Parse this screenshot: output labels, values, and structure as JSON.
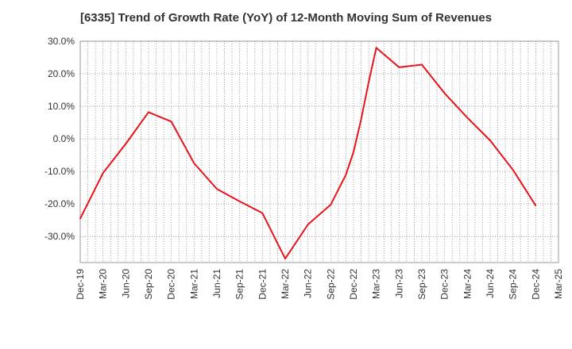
{
  "chart_data": {
    "type": "line",
    "title": "[6335]  Trend of Growth Rate (YoY) of 12-Month Moving Sum of Revenues",
    "xlabel": "",
    "ylabel": "",
    "ylim": [
      -38,
      30
    ],
    "y_ticks": [
      30,
      20,
      10,
      0,
      -10,
      -20,
      -30
    ],
    "y_tick_labels": [
      "30.0%",
      "20.0%",
      "10.0%",
      "0.0%",
      "-10.0%",
      "-20.0%",
      "-30.0%"
    ],
    "x_tick_labels": [
      "Dec-19",
      "Mar-20",
      "Jun-20",
      "Sep-20",
      "Dec-20",
      "Mar-21",
      "Jun-21",
      "Sep-21",
      "Dec-21",
      "Mar-22",
      "Jun-22",
      "Sep-22",
      "Dec-22",
      "Mar-23",
      "Jun-23",
      "Sep-23",
      "Dec-23",
      "Mar-24",
      "Jun-24",
      "Sep-24",
      "Dec-24",
      "Mar-25"
    ],
    "grid": true,
    "line_color": "#e8141b",
    "series": [
      {
        "x": [
          "Dec-19",
          "Mar-20",
          "Jun-20",
          "Sep-20",
          "Dec-20",
          "Mar-21",
          "Jun-21",
          "Sep-21",
          "Dec-21",
          "Mar-22",
          "Jun-22",
          "Sep-22",
          "Nov-22",
          "Dec-22",
          "Jan-23",
          "Feb-23",
          "Mar-23",
          "Jun-23",
          "Sep-23",
          "Dec-23",
          "Mar-24",
          "Jun-24",
          "Sep-24",
          "Dec-24"
        ],
        "values": [
          -24.5,
          -10.5,
          -1.5,
          8.2,
          5.3,
          -7.5,
          -15.4,
          -19.2,
          -22.8,
          -36.8,
          -26.3,
          -20.2,
          -11.0,
          -4.0,
          6.0,
          17.5,
          28.0,
          22.0,
          22.8,
          14.0,
          6.5,
          -0.5,
          -9.5,
          -20.5
        ]
      }
    ]
  }
}
